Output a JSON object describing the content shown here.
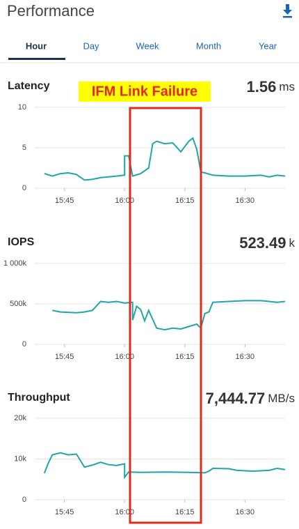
{
  "header": {
    "title": "Performance",
    "tabs": [
      "Hour",
      "Day",
      "Week",
      "Month",
      "Year"
    ]
  },
  "annotation": "IFM Link Failure",
  "chart_data": [
    {
      "type": "line",
      "title": "Latency",
      "current": "1.56",
      "unit": "ms",
      "color": "#1fa5a8",
      "x": [
        "15:40",
        "15:42",
        "15:44",
        "15:46",
        "15:48",
        "15:50",
        "15:52",
        "15:54",
        "15:56",
        "15:58",
        "16:00",
        "16:00",
        "16:01",
        "16:02",
        "16:04",
        "16:06",
        "16:07",
        "16:08",
        "16:10",
        "16:12",
        "16:14",
        "16:16",
        "16:17",
        "16:18",
        "16:19",
        "16:20",
        "16:22",
        "16:26",
        "16:30",
        "16:34",
        "16:36",
        "16:38",
        "16:40"
      ],
      "values": [
        1.8,
        1.5,
        1.8,
        1.9,
        1.7,
        1.0,
        1.1,
        1.3,
        1.4,
        1.5,
        1.6,
        4.0,
        4.0,
        1.5,
        1.8,
        2.5,
        5.5,
        5.8,
        5.5,
        5.6,
        4.5,
        5.8,
        6.2,
        4.8,
        2.0,
        1.9,
        1.6,
        1.5,
        1.5,
        1.6,
        1.4,
        1.6,
        1.5
      ],
      "xlim": [
        "15:39",
        "16:40"
      ],
      "xticks": [
        "15:45",
        "16:00",
        "16:15",
        "16:30"
      ],
      "ylim": [
        0,
        10
      ],
      "yticks": [
        0,
        5,
        10
      ],
      "grid": true
    },
    {
      "type": "line",
      "title": "IOPS",
      "current": "523.49",
      "unit": "k",
      "color": "#1fa5a8",
      "x": [
        "15:42",
        "15:44",
        "15:48",
        "15:50",
        "15:52",
        "15:54",
        "15:56",
        "15:58",
        "16:00",
        "16:02",
        "16:02",
        "16:03",
        "16:04",
        "16:05",
        "16:06",
        "16:08",
        "16:10",
        "16:12",
        "16:14",
        "16:16",
        "16:18",
        "16:19",
        "16:20",
        "16:21",
        "16:22",
        "16:26",
        "16:30",
        "16:34",
        "16:36",
        "16:38",
        "16:40"
      ],
      "values": [
        420,
        400,
        390,
        400,
        420,
        530,
        520,
        530,
        510,
        520,
        300,
        470,
        430,
        290,
        420,
        200,
        180,
        200,
        190,
        220,
        250,
        200,
        380,
        400,
        520,
        530,
        540,
        540,
        530,
        520,
        530
      ],
      "xlim": [
        "15:39",
        "16:40"
      ],
      "xticks": [
        "15:45",
        "16:00",
        "16:15",
        "16:30"
      ],
      "ylim": [
        0,
        1000
      ],
      "yticks": [
        0,
        {
          "value": 500,
          "label": "500k"
        },
        {
          "value": 1000,
          "label": "1 000k"
        }
      ],
      "grid": true
    },
    {
      "type": "line",
      "title": "Throughput",
      "current": "7,444.77",
      "unit": "MB/s",
      "color": "#1fa5a8",
      "x": [
        "15:40",
        "15:41",
        "15:42",
        "15:44",
        "15:46",
        "15:48",
        "15:50",
        "15:52",
        "15:54",
        "15:56",
        "15:58",
        "16:00",
        "16:00",
        "16:01",
        "16:04",
        "16:10",
        "16:16",
        "16:20",
        "16:21",
        "16:22",
        "16:26",
        "16:28",
        "16:32",
        "16:36",
        "16:38",
        "16:40"
      ],
      "values": [
        6500,
        9000,
        11000,
        11500,
        11000,
        11200,
        8000,
        8500,
        9200,
        8600,
        8400,
        8800,
        5500,
        6800,
        6700,
        6800,
        6700,
        6600,
        7000,
        7700,
        7600,
        7200,
        7000,
        7200,
        7700,
        7400
      ],
      "xlim": [
        "15:39",
        "16:40"
      ],
      "xticks": [
        "15:45",
        "16:00",
        "16:15",
        "16:30"
      ],
      "ylim": [
        0,
        20000
      ],
      "yticks": [
        0,
        {
          "value": 10000,
          "label": "10k"
        },
        {
          "value": 20000,
          "label": "20k"
        }
      ],
      "grid": true
    }
  ]
}
